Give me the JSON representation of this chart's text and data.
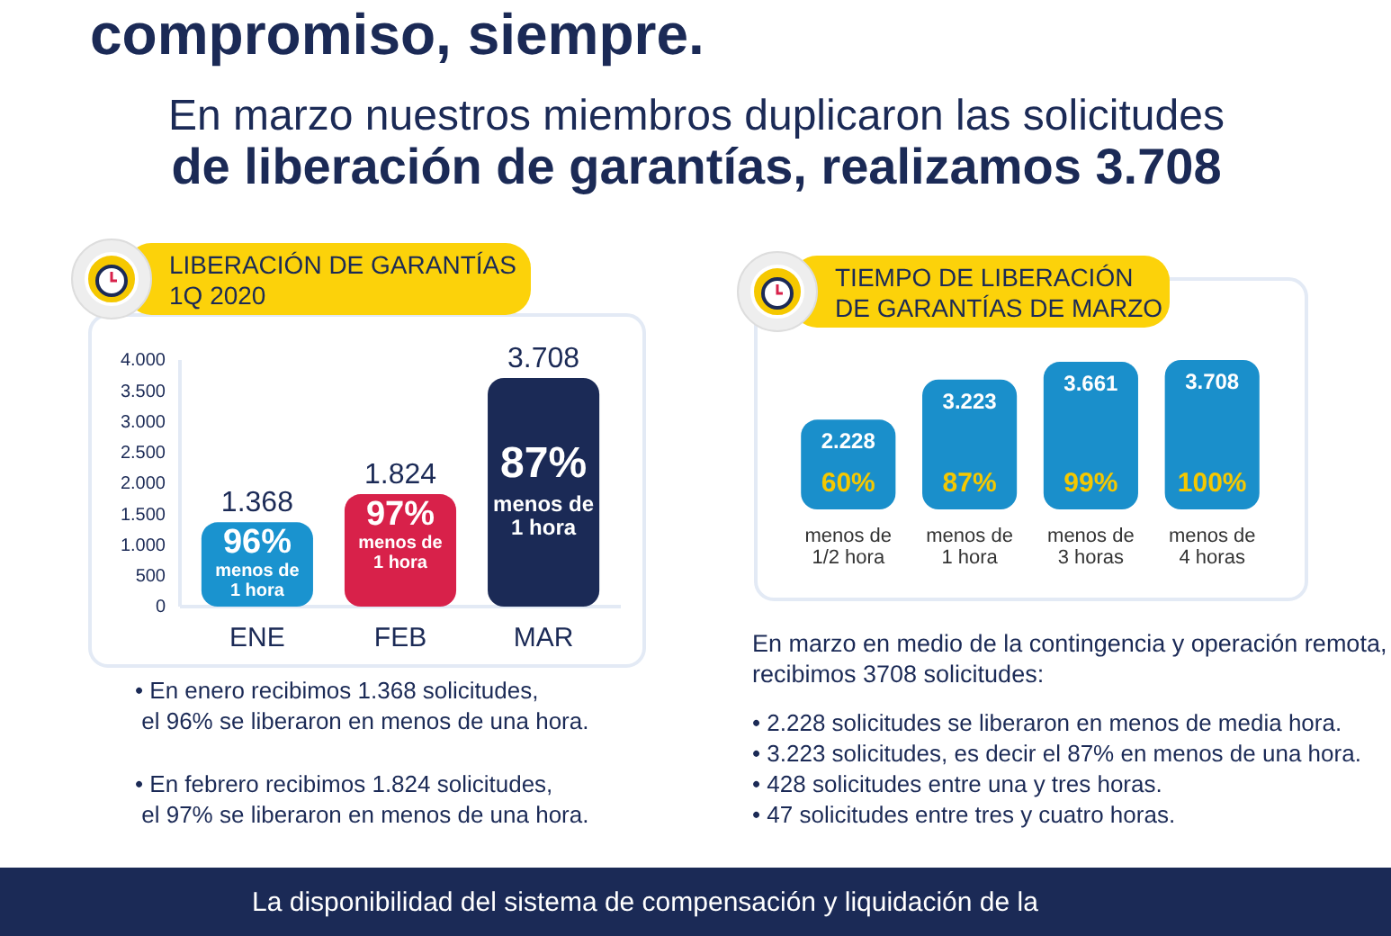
{
  "chart_data": [
    {
      "type": "other",
      "title": "compromiso, siempre.",
      "subtitle": "En marzo nuestros miembros duplicaron las solicitudes\nde liberación de garantías, realizamos 3.708",
      "annotations": [
        "La disponibilidad del sistema de compensación y liquidación de la"
      ]
    },
    {
      "type": "bar",
      "title": "LIBERACIÓN DE GARANTÍAS\n1Q 2020",
      "categories": [
        "ENE",
        "FEB",
        "MAR"
      ],
      "values": [
        1368,
        1824,
        3708
      ],
      "colors": [
        "#1a93cf",
        "#d8214a",
        "#1b2a56"
      ],
      "value_labels": [
        "1.368",
        "1.824",
        "3.708"
      ],
      "ylim": [
        0,
        4000
      ],
      "yticks": [
        {
          "value": 0,
          "label": "0"
        },
        {
          "value": 500,
          "label": "500"
        },
        {
          "value": 1000,
          "label": "1.000"
        },
        {
          "value": 1500,
          "label": "1.500"
        },
        {
          "value": 2000,
          "label": "2.000"
        },
        {
          "value": 2500,
          "label": "2.500"
        },
        {
          "value": 3000,
          "label": "3.000"
        },
        {
          "value": 3500,
          "label": "3.500"
        },
        {
          "value": 4000,
          "label": "4.000"
        }
      ],
      "grid": false,
      "annotations": [
        "96%\nmenos de\n1 hora",
        "97%\nmenos de\n1 hora",
        "87%\nmenos de\n1 hora",
        "• En enero recibimos 1.368 solicitudes,\nel 96% se liberaron en menos de una hora.",
        "• En febrero recibimos 1.824 solicitudes,\nel  97% se liberaron en menos de una hora."
      ]
    },
    {
      "type": "bar",
      "title": "TIEMPO DE LIBERACIÓN\nDE GARANTÍAS DE MARZO",
      "categories": [
        "menos de\n1/2 hora",
        "menos de\n1 hora",
        "menos de\n3 horas",
        "menos de\n4 horas"
      ],
      "values": [
        2228,
        3223,
        3661,
        3708
      ],
      "color": "#1a8fcb",
      "value_labels": [
        "2.228",
        "3.223",
        "3.661",
        "3.708"
      ],
      "annotations": [
        "60%",
        "87%",
        "99%",
        "100%",
        "En marzo en medio de la contingencia y operación remota,\nrecibimos 3708 solicitudes:",
        "• 2.228 solicitudes se liberaron en menos de media hora.",
        "• 3.223 solicitudes, es decir el 87% en menos de una hora.",
        "• 428 solicitudes entre una y tres horas.",
        "• 47 solicitudes entre tres y cuatro horas."
      ]
    }
  ]
}
